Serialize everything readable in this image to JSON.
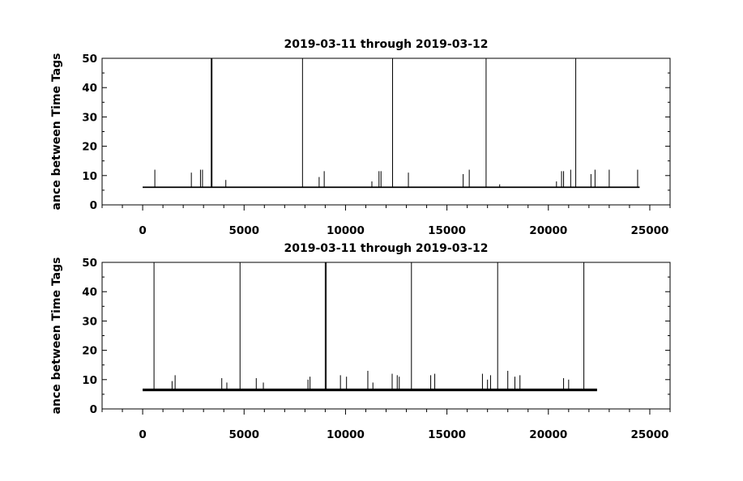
{
  "chart_data": [
    {
      "type": "line",
      "title": "2019-03-11 through 2019-03-12",
      "ylabel": "ance between Time Tags",
      "xlabel": "",
      "xlim": [
        -2000,
        26000
      ],
      "ylim": [
        0,
        50
      ],
      "xticks": [
        0,
        5000,
        10000,
        15000,
        20000,
        25000
      ],
      "xtick_labels": [
        "0",
        "5000",
        "10000",
        "15000",
        "20000",
        "25000"
      ],
      "yticks": [
        0,
        10,
        20,
        30,
        40,
        50
      ],
      "ytick_labels": [
        "0",
        "10",
        "20",
        "30",
        "40",
        "50"
      ],
      "grid": false,
      "series": [
        {
          "baseline": 6,
          "x_range": [
            0,
            24500
          ],
          "spikes": [
            {
              "x": 600,
              "y": 12
            },
            {
              "x": 2400,
              "y": 11
            },
            {
              "x": 2850,
              "y": 12
            },
            {
              "x": 2950,
              "y": 12
            },
            {
              "x": 3380,
              "y": 50
            },
            {
              "x": 3420,
              "y": 50
            },
            {
              "x": 4100,
              "y": 8.5
            },
            {
              "x": 7880,
              "y": 50
            },
            {
              "x": 8700,
              "y": 9.5
            },
            {
              "x": 8950,
              "y": 11.5
            },
            {
              "x": 11300,
              "y": 8
            },
            {
              "x": 11650,
              "y": 11.5
            },
            {
              "x": 11750,
              "y": 11.5
            },
            {
              "x": 12320,
              "y": 50
            },
            {
              "x": 13100,
              "y": 11
            },
            {
              "x": 15800,
              "y": 10.5
            },
            {
              "x": 16100,
              "y": 12
            },
            {
              "x": 16930,
              "y": 50
            },
            {
              "x": 17600,
              "y": 7
            },
            {
              "x": 20400,
              "y": 8
            },
            {
              "x": 20650,
              "y": 11.5
            },
            {
              "x": 20750,
              "y": 11.5
            },
            {
              "x": 21100,
              "y": 12
            },
            {
              "x": 21350,
              "y": 50
            },
            {
              "x": 22100,
              "y": 10.5
            },
            {
              "x": 22300,
              "y": 12
            },
            {
              "x": 23000,
              "y": 12
            },
            {
              "x": 24400,
              "y": 12
            }
          ]
        }
      ]
    },
    {
      "type": "line",
      "title": "2019-03-11 through 2019-03-12",
      "ylabel": "ance between Time Tags",
      "xlabel": "",
      "xlim": [
        -2000,
        26000
      ],
      "ylim": [
        0,
        50
      ],
      "xticks": [
        0,
        5000,
        10000,
        15000,
        20000,
        25000
      ],
      "xtick_labels": [
        "0",
        "5000",
        "10000",
        "15000",
        "20000",
        "25000"
      ],
      "yticks": [
        0,
        10,
        20,
        30,
        40,
        50
      ],
      "ytick_labels": [
        "0",
        "10",
        "20",
        "30",
        "40",
        "50"
      ],
      "grid": false,
      "series": [
        {
          "baseline": 6.5,
          "x_range": [
            0,
            22400
          ],
          "spikes": [
            {
              "x": 560,
              "y": 50
            },
            {
              "x": 1450,
              "y": 9.5
            },
            {
              "x": 1600,
              "y": 11.5
            },
            {
              "x": 3900,
              "y": 10.5
            },
            {
              "x": 4150,
              "y": 9
            },
            {
              "x": 4800,
              "y": 50
            },
            {
              "x": 5600,
              "y": 10.5
            },
            {
              "x": 5950,
              "y": 9
            },
            {
              "x": 8150,
              "y": 10
            },
            {
              "x": 8250,
              "y": 11
            },
            {
              "x": 9000,
              "y": 50
            },
            {
              "x": 9050,
              "y": 50
            },
            {
              "x": 9750,
              "y": 11.5
            },
            {
              "x": 10050,
              "y": 11
            },
            {
              "x": 11100,
              "y": 13
            },
            {
              "x": 11350,
              "y": 9
            },
            {
              "x": 12300,
              "y": 12
            },
            {
              "x": 12550,
              "y": 11.5
            },
            {
              "x": 12650,
              "y": 11
            },
            {
              "x": 13250,
              "y": 50
            },
            {
              "x": 14200,
              "y": 11.5
            },
            {
              "x": 14400,
              "y": 12
            },
            {
              "x": 16750,
              "y": 12
            },
            {
              "x": 17000,
              "y": 10
            },
            {
              "x": 17150,
              "y": 11.5
            },
            {
              "x": 17500,
              "y": 50
            },
            {
              "x": 18000,
              "y": 13
            },
            {
              "x": 18350,
              "y": 11
            },
            {
              "x": 18600,
              "y": 11.5
            },
            {
              "x": 20750,
              "y": 10.5
            },
            {
              "x": 21000,
              "y": 10
            },
            {
              "x": 21750,
              "y": 50
            }
          ]
        }
      ]
    }
  ]
}
